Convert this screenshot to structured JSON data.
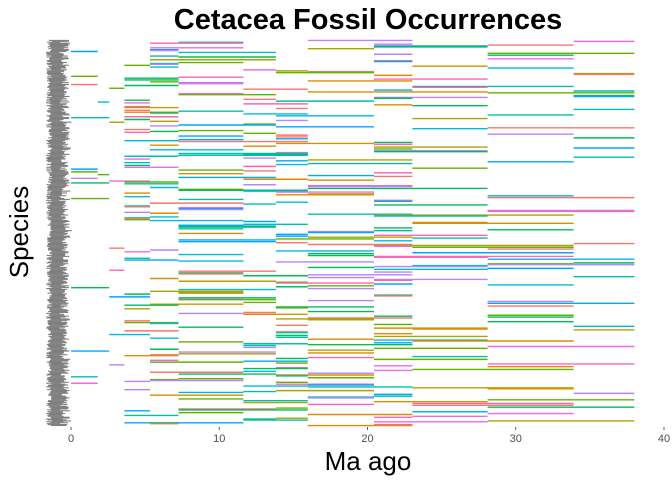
{
  "chart_data": {
    "type": "range",
    "title": "Cetacea Fossil Occurrences",
    "xlabel": "Ma ago",
    "ylabel": "Species",
    "xlim": [
      0,
      40
    ],
    "x_ticks": [
      "0",
      "10",
      "20",
      "30",
      "40"
    ],
    "x_tick_values": [
      0,
      10,
      20,
      30,
      40
    ],
    "grid": false,
    "legend": "none",
    "species_count": 420,
    "interval_boundaries_ma": [
      0,
      0.01,
      1.8,
      2.58,
      3.6,
      5.33,
      7.25,
      11.63,
      13.82,
      15.97,
      20.44,
      23.03,
      28.1,
      33.9,
      38.0
    ],
    "palette": [
      "#F8766D",
      "#DB8E00",
      "#AEA200",
      "#64B200",
      "#00BD5C",
      "#00C1A7",
      "#00BADE",
      "#00A6FF",
      "#B385FF",
      "#EF67EB",
      "#FF63B6"
    ]
  }
}
